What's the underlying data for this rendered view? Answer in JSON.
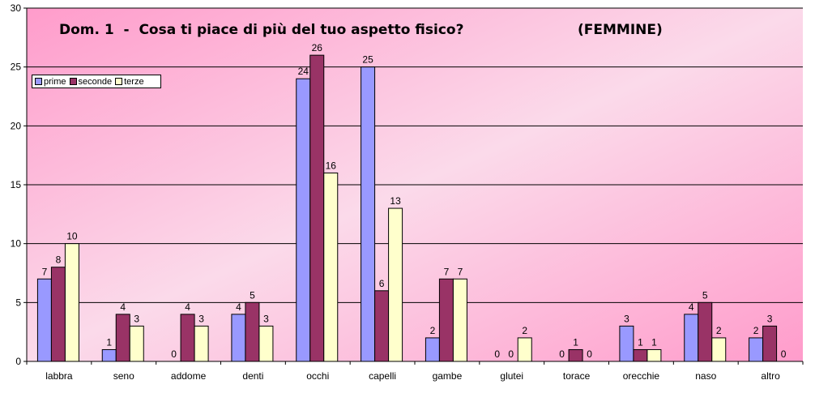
{
  "chart_data": {
    "type": "bar",
    "title_left": "Dom. 1  -  Cosa ti piace di più del tuo aspetto fisico?",
    "title_right": "(FEMMINE)",
    "categories": [
      "labbra",
      "seno",
      "addome",
      "denti",
      "occhi",
      "capelli",
      "gambe",
      "glutei",
      "torace",
      "orecchie",
      "naso",
      "altro"
    ],
    "series": [
      {
        "name": "prime",
        "color": "#9999ff",
        "values": [
          7,
          1,
          0,
          4,
          24,
          25,
          2,
          0,
          0,
          3,
          4,
          2
        ]
      },
      {
        "name": "seconde",
        "color": "#993366",
        "values": [
          8,
          4,
          4,
          5,
          26,
          6,
          7,
          0,
          1,
          1,
          5,
          3
        ]
      },
      {
        "name": "terze",
        "color": "#ffffcc",
        "values": [
          10,
          3,
          3,
          3,
          16,
          13,
          7,
          2,
          0,
          1,
          2,
          0
        ]
      }
    ],
    "ylim": [
      0,
      30
    ],
    "yticks": [
      0,
      5,
      10,
      15,
      20,
      25,
      30
    ],
    "grid": true,
    "legend_position": "top-left",
    "background": "pink gradient"
  }
}
